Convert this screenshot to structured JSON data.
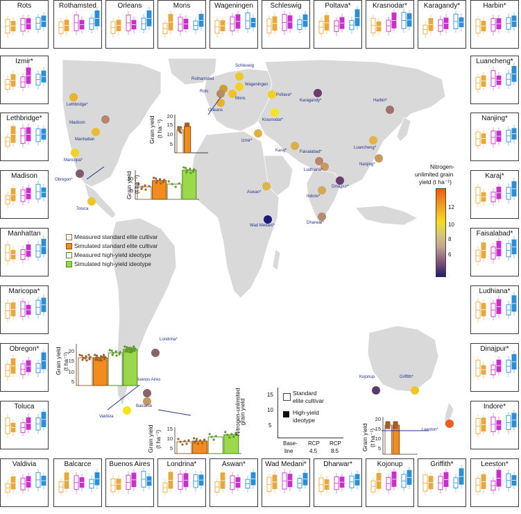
{
  "panels": {
    "top": [
      "Rots",
      "Rothamsted",
      "Orleans",
      "Mons",
      "Wageningen",
      "Schleswig",
      "Poltava*",
      "Krasnodar*",
      "Karagandy*",
      "Harbin*"
    ],
    "left": [
      "Izmir*",
      "Lethbridge*",
      "Madison",
      "Manhattan",
      "Maricopa*",
      "Obregon*",
      "Toluca"
    ],
    "right": [
      "Luancheng*",
      "Nanjing*",
      "Karaj*",
      "Faisalabad*",
      "Ludhiana*",
      "Dinajpur*",
      "Indore*"
    ],
    "bottom": [
      "Valdivia",
      "Balcarce",
      "Buenos Aires",
      "Londrina*",
      "Aswan*",
      "Wad Medani*",
      "Dharwar*",
      "Kojonup",
      "Griffith*",
      "Leeston*"
    ]
  },
  "sites": [
    {
      "name": "Lethbridge*",
      "color": "#e8b22a"
    },
    {
      "name": "Madison",
      "color": "#b5876c"
    },
    {
      "name": "Manhattan",
      "color": "#eabc30"
    },
    {
      "name": "Maricopa*",
      "color": "#f2d41e"
    },
    {
      "name": "Obregon*",
      "color": "#7e5a6e"
    },
    {
      "name": "Toluca",
      "color": "#eec62a"
    },
    {
      "name": "Rothamsted",
      "color": "#c9a02f"
    },
    {
      "name": "Schleswig",
      "color": "#f0c72a"
    },
    {
      "name": "Rots",
      "color": "#b98a62"
    },
    {
      "name": "Orleans",
      "color": "#e7b22c"
    },
    {
      "name": "Mons",
      "color": "#efc12a"
    },
    {
      "name": "Wageningen",
      "color": "#f4d21d"
    },
    {
      "name": "Poltava*",
      "color": "#f2cf20"
    },
    {
      "name": "Krasnodar*",
      "color": "#f5e31b"
    },
    {
      "name": "Karagandy*",
      "color": "#6b3d6b"
    },
    {
      "name": "Harbin*",
      "color": "#a07070"
    },
    {
      "name": "Izmir*",
      "color": "#e2b142"
    },
    {
      "name": "Karaj*",
      "color": "#d9b04a"
    },
    {
      "name": "Faisalabad*",
      "color": "#b9876c"
    },
    {
      "name": "Ludhiana*",
      "color": "#c49a63"
    },
    {
      "name": "Luancheng*",
      "color": "#e0b444"
    },
    {
      "name": "Nanjing*",
      "color": "#c49a63"
    },
    {
      "name": "Aswan*",
      "color": "#ddb64a"
    },
    {
      "name": "Indore*",
      "color": "#d3a955"
    },
    {
      "name": "Dinajpur*",
      "color": "#6b3d6b"
    },
    {
      "name": "Dharwar*",
      "color": "#b98a6b"
    },
    {
      "name": "Wad Medani*",
      "color": "#1d1a7a"
    },
    {
      "name": "Londrina*",
      "color": "#8a6468"
    },
    {
      "name": "Buenos Aires",
      "color": "#8a6468"
    },
    {
      "name": "Balcarce",
      "color": "#c49a63"
    },
    {
      "name": "Valdivia",
      "color": "#f4e21b"
    },
    {
      "name": "Kojonup",
      "color": "#5a3b6e"
    },
    {
      "name": "Griffith*",
      "color": "#f2c421"
    },
    {
      "name": "Leeston*",
      "color": "#f05a23"
    }
  ],
  "legend_series": [
    {
      "label": "Measured standard elite cultivar",
      "color": "#ffffff",
      "edge": "#9a6a3a"
    },
    {
      "label": "Simulated standard elite cultivar",
      "color": "#f28c1d",
      "edge": "#8a4a10"
    },
    {
      "label": "Measured high-yield ideotype",
      "color": "#ffffff",
      "edge": "#5a8a2a"
    },
    {
      "label": "Simulated high-yield ideotype",
      "color": "#9bd84a",
      "edge": "#4a8a1a"
    }
  ],
  "colorbar": {
    "title": [
      "Nitrogen-",
      "unlimited grain",
      "yield (t ha⁻¹)"
    ],
    "ticks": [
      "12",
      "10",
      "8",
      "6"
    ]
  },
  "inset_axis": {
    "ylabel_1": "Grain yield",
    "ylabel_2": "(t ha⁻¹)"
  },
  "inset_ticks": {
    "na_top": [
      "20",
      "15",
      "10",
      "5"
    ],
    "na_mid": [
      "10",
      "5"
    ],
    "sa_left": [
      "20",
      "15",
      "10",
      "5"
    ],
    "sa_bottom": [
      "15",
      "10",
      "5"
    ],
    "aus": [
      "20",
      "15",
      "10",
      "5"
    ]
  },
  "key": {
    "ylabel": [
      "Nitrogen-unlimited",
      "grain yield"
    ],
    "standard": [
      "Standard",
      "elite cultivar"
    ],
    "highyield": [
      "High-yield",
      "ideotype"
    ],
    "xticks": [
      "Base-",
      "line",
      "RCP",
      "4.5",
      "RCP",
      "8.5"
    ],
    "yticks": [
      "15",
      "10",
      "5"
    ]
  },
  "colors": {
    "baseline": "#e8a93c",
    "rcp45": "#c930c9",
    "rcp85": "#2b8fd8",
    "land": "#d9d9d9",
    "map_edge": "#ffffff"
  }
}
